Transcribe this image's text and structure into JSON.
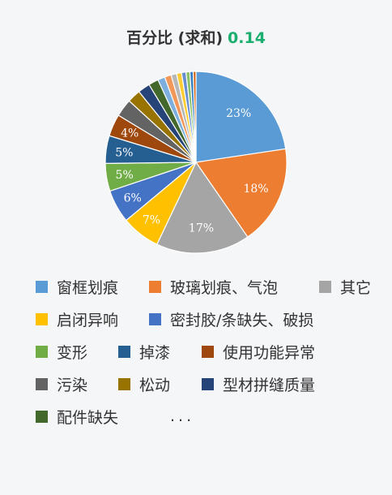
{
  "header": {
    "title": "百分比 (求和)",
    "value": "0.14"
  },
  "legend_more": "...",
  "chart_data": {
    "type": "pie",
    "title": "百分比 (求和)",
    "slices": [
      {
        "name": "窗框划痕",
        "value": 23,
        "label": "23%",
        "color": "#5b9bd5"
      },
      {
        "name": "玻璃划痕、气泡",
        "value": 18,
        "label": "18%",
        "color": "#ed7d31"
      },
      {
        "name": "其它",
        "value": 17,
        "label": "17%",
        "color": "#a5a5a5"
      },
      {
        "name": "启闭异响",
        "value": 7,
        "label": "7%",
        "color": "#ffc000"
      },
      {
        "name": "密封胶/条缺失、破损",
        "value": 6,
        "label": "6%",
        "color": "#4472c4"
      },
      {
        "name": "变形",
        "value": 5,
        "label": "5%",
        "color": "#70ad47"
      },
      {
        "name": "掉漆",
        "value": 5,
        "label": "5%",
        "color": "#255e91"
      },
      {
        "name": "使用功能异常",
        "value": 4,
        "label": "4%",
        "color": "#9e480e"
      },
      {
        "name": "污染",
        "value": 3.2,
        "label": "",
        "color": "#636363"
      },
      {
        "name": "松动",
        "value": 2.4,
        "label": "",
        "color": "#997300"
      },
      {
        "name": "型材拼缝质量",
        "value": 2.2,
        "label": "",
        "color": "#264478"
      },
      {
        "name": "配件缺失",
        "value": 1.8,
        "label": "",
        "color": "#43682b"
      },
      {
        "name": "",
        "value": 1.3,
        "label": "",
        "color": "#7cafdd"
      },
      {
        "name": "",
        "value": 1.2,
        "label": "",
        "color": "#f1975a"
      },
      {
        "name": "",
        "value": 1.0,
        "label": "",
        "color": "#b7b7b7"
      },
      {
        "name": "",
        "value": 0.9,
        "label": "",
        "color": "#ffcd33"
      },
      {
        "name": "",
        "value": 0.8,
        "label": "",
        "color": "#698ed0"
      },
      {
        "name": "",
        "value": 0.7,
        "label": "",
        "color": "#8cc168"
      },
      {
        "name": "",
        "value": 0.6,
        "label": "",
        "color": "#327dc2"
      },
      {
        "name": "",
        "value": 0.5,
        "label": "",
        "color": "#d26012"
      }
    ]
  }
}
